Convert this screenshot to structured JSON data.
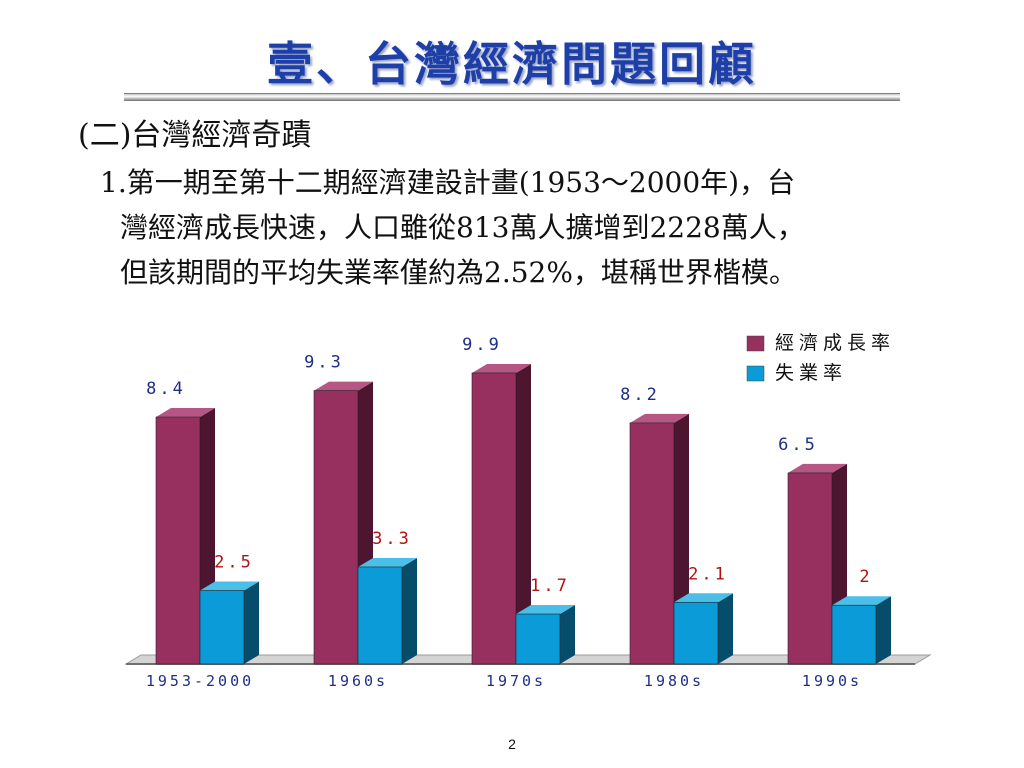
{
  "slide": {
    "title": "壹、台灣經濟問題回顧",
    "heading": "(二)台灣經濟奇蹟",
    "paragraph_lines": [
      "1.第一期至第十二期經濟建設計畫(1953～2000年)，台",
      "灣經濟成長快速，人口雖從813萬人擴增到2228萬人，",
      "但該期間的平均失業率僅約為2.52%，堪稱世界楷模。"
    ],
    "page_number": "2"
  },
  "chart_data": {
    "type": "bar",
    "categories": [
      "1953-2000",
      "1960s",
      "1970s",
      "1980s",
      "1990s"
    ],
    "series": [
      {
        "name": "經濟成長率",
        "values": [
          8.4,
          9.3,
          9.9,
          8.2,
          6.5
        ],
        "labels": [
          "8.4",
          "9.3",
          "9.9",
          "8.2",
          "6.5"
        ],
        "color": "#98305f",
        "side_color": "#4e1530",
        "top_color": "#b65684",
        "label_color": "#1f2e86"
      },
      {
        "name": "失業率",
        "values": [
          2.5,
          3.3,
          1.7,
          2.1,
          2.0
        ],
        "labels": [
          "2.5",
          "3.3",
          "1.7",
          "2.1",
          "2"
        ],
        "color": "#0a9bd8",
        "side_color": "#064d6c",
        "top_color": "#4bbfe8",
        "label_color": "#b01212"
      }
    ],
    "ylim": [
      0,
      10.5
    ],
    "grid": false,
    "legend": "top-right",
    "title": "",
    "xlabel": "",
    "ylabel": ""
  }
}
